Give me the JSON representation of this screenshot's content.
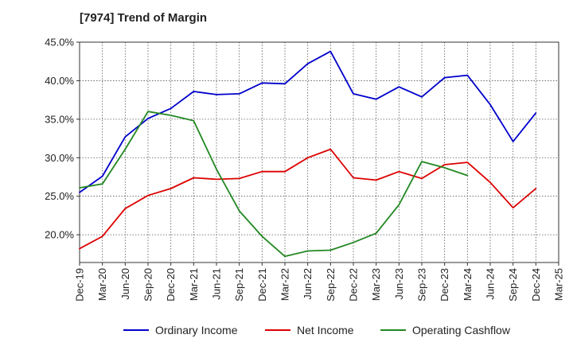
{
  "chart_data": {
    "type": "line",
    "title": "[7974]  Trend of Margin",
    "xlabel": "",
    "ylabel": "",
    "categories": [
      "Dec-19",
      "Mar-20",
      "Jun-20",
      "Sep-20",
      "Dec-20",
      "Mar-21",
      "Jun-21",
      "Sep-21",
      "Dec-21",
      "Mar-22",
      "Jun-22",
      "Sep-22",
      "Dec-22",
      "Mar-23",
      "Jun-23",
      "Sep-23",
      "Dec-23",
      "Mar-24",
      "Jun-24",
      "Sep-24",
      "Dec-24",
      "Mar-25"
    ],
    "y_ticks": [
      "20.0%",
      "25.0%",
      "30.0%",
      "35.0%",
      "40.0%",
      "45.0%"
    ],
    "ylim": [
      16.4,
      45.0
    ],
    "grid": true,
    "legend_position": "bottom",
    "series": [
      {
        "name": "Ordinary Income",
        "color": "#0000cc",
        "values": [
          25.5,
          27.6,
          32.7,
          35.1,
          36.4,
          38.6,
          38.2,
          38.3,
          39.7,
          39.6,
          42.2,
          43.8,
          38.3,
          37.6,
          39.2,
          37.9,
          40.4,
          40.7,
          36.9,
          32.1,
          35.8,
          null
        ]
      },
      {
        "name": "Net Income",
        "color": "#dd0000",
        "values": [
          18.2,
          19.8,
          23.4,
          25.1,
          26.0,
          27.4,
          27.2,
          27.3,
          28.2,
          28.2,
          30.0,
          31.1,
          27.4,
          27.1,
          28.2,
          27.3,
          29.1,
          29.4,
          26.8,
          23.5,
          26.0,
          null
        ]
      },
      {
        "name": "Operating Cashflow",
        "color": "#228822",
        "values": [
          26.1,
          26.6,
          31.1,
          36.0,
          35.5,
          34.8,
          28.5,
          23.1,
          19.8,
          17.2,
          17.9,
          18.0,
          19.0,
          20.2,
          23.9,
          29.5,
          28.7,
          27.7,
          null,
          null,
          null,
          null
        ]
      }
    ]
  }
}
